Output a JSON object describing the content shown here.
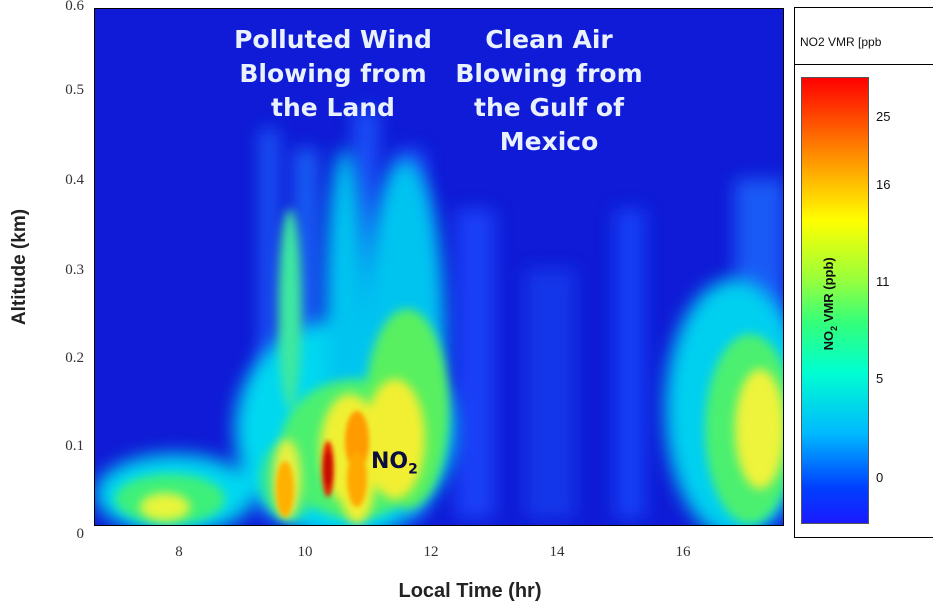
{
  "chart_data": {
    "type": "heatmap",
    "title": "",
    "xlabel": "Local Time (hr)",
    "ylabel": "Altitude (km)",
    "xlim": [
      6.6,
      17.5
    ],
    "ylim": [
      0,
      0.6
    ],
    "x_ticks": [
      "8",
      "10",
      "12",
      "14",
      "16"
    ],
    "y_ticks": [
      "0",
      "0.1",
      "0.2",
      "0.3",
      "0.4",
      "0.5",
      "0.6"
    ],
    "annotations": [
      {
        "text_lines": [
          "Polluted Wind",
          "Blowing from",
          "the Land"
        ]
      },
      {
        "text_lines": [
          "Clean Air",
          "Blowing from",
          "the Gulf of",
          "Mexico"
        ]
      }
    ],
    "species_label": {
      "main": "NO",
      "sub": "2"
    },
    "colorbar": {
      "title": "NO2 VMR [ppb",
      "label_main": "NO",
      "label_sub": "2",
      "label_rest": " VMR (ppb)",
      "ticks": [
        "25",
        "16",
        "11",
        "5",
        "0"
      ],
      "colors": [
        "#ff0000",
        "#ff8a00",
        "#ffff00",
        "#33ff7a",
        "#00ffd0",
        "#00b8ff",
        "#1a1aff"
      ]
    },
    "hotspots": [
      {
        "x": 7.6,
        "y": 0.03,
        "value": 12
      },
      {
        "x": 8.3,
        "y": 0.05,
        "value": 8
      },
      {
        "x": 9.3,
        "y": 0.06,
        "value": 9
      },
      {
        "x": 9.7,
        "y": 0.05,
        "value": 20
      },
      {
        "x": 10.35,
        "y": 0.07,
        "value": 26
      },
      {
        "x": 10.9,
        "y": 0.11,
        "value": 18
      },
      {
        "x": 11.5,
        "y": 0.08,
        "value": 10
      },
      {
        "x": 17.0,
        "y": 0.1,
        "value": 12
      }
    ]
  }
}
